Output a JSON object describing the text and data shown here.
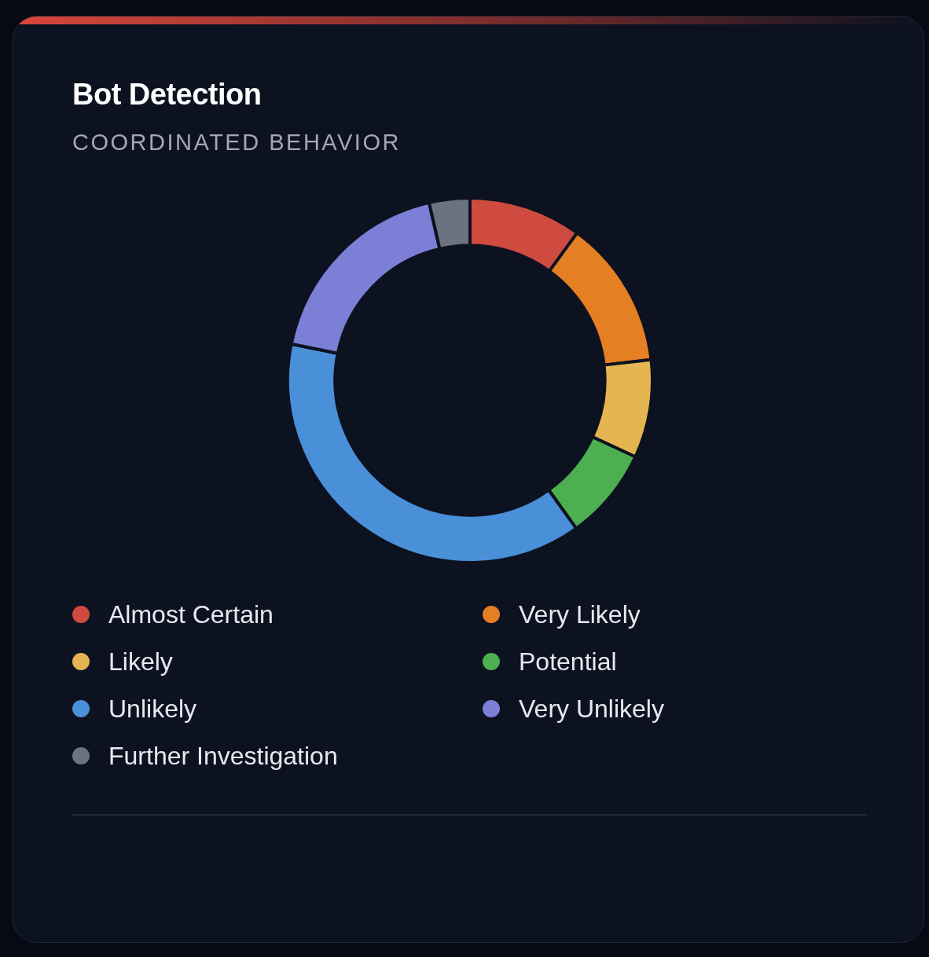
{
  "chart_data": {
    "type": "donut",
    "title": "Bot Detection",
    "subtitle": "COORDINATED BEHAVIOR",
    "categories": [
      "Almost Certain",
      "Very Likely",
      "Likely",
      "Potential",
      "Unlikely",
      "Very Unlikely",
      "Further Investigation"
    ],
    "values": [
      10,
      13.2,
      8.7,
      8.2,
      38.1,
      18.2,
      3.6
    ],
    "colors": [
      "#cf4b40",
      "#e57f24",
      "#e5b552",
      "#4caf50",
      "#4a90d9",
      "#7b7fd6",
      "#6b7280"
    ],
    "legend": "bottom"
  }
}
